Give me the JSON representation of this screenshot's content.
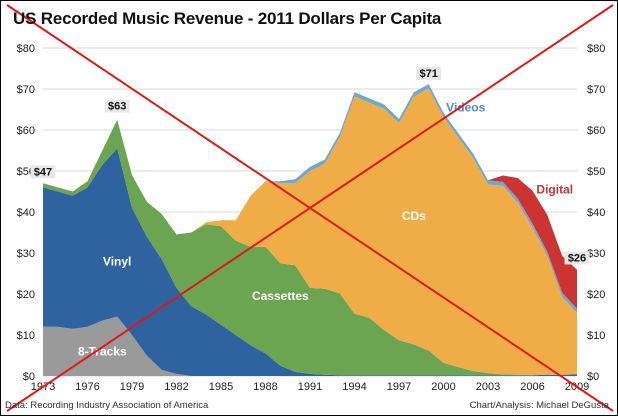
{
  "title": "US Recorded Music Revenue - 2011 Dollars Per Capita",
  "footer": {
    "source": "Data: Recording Industry Association of America",
    "credit": "Chart/Analysis: Michael DeGusta"
  },
  "chart_data": {
    "type": "area",
    "stacked": true,
    "title": "US Recorded Music Revenue - 2011 Dollars Per Capita",
    "xlabel": "",
    "ylabel": "",
    "xlim": [
      1973,
      2009
    ],
    "ylim": [
      0,
      80
    ],
    "y_ticks": [
      0,
      10,
      20,
      30,
      40,
      50,
      60,
      70,
      80
    ],
    "y_tick_labels": [
      "$0",
      "$10",
      "$20",
      "$30",
      "$40",
      "$50",
      "$60",
      "$70",
      "$80"
    ],
    "x_ticks": [
      1973,
      1976,
      1979,
      1982,
      1985,
      1988,
      1991,
      1994,
      1997,
      2000,
      2003,
      2006,
      2009
    ],
    "grid": true,
    "x": [
      1973,
      1974,
      1975,
      1976,
      1977,
      1978,
      1979,
      1980,
      1981,
      1982,
      1983,
      1984,
      1985,
      1986,
      1987,
      1988,
      1989,
      1990,
      1991,
      1992,
      1993,
      1994,
      1995,
      1996,
      1997,
      1998,
      1999,
      2000,
      2001,
      2002,
      2003,
      2004,
      2005,
      2006,
      2007,
      2008,
      2009
    ],
    "series": [
      {
        "name": "8-Tracks",
        "color": "#9a9a9a",
        "values": [
          12,
          12,
          11.5,
          12,
          13.5,
          14.5,
          10,
          5,
          1.5,
          0.5,
          0,
          0,
          0,
          0,
          0,
          0,
          0,
          0,
          0,
          0,
          0,
          0,
          0,
          0,
          0,
          0,
          0,
          0,
          0,
          0,
          0,
          0,
          0,
          0,
          0,
          0,
          0
        ]
      },
      {
        "name": "Vinyl",
        "color": "#2e63a0",
        "values": [
          34,
          33,
          32.5,
          34,
          38,
          41,
          31,
          29,
          27,
          21,
          17,
          15,
          12.5,
          10,
          7.5,
          5.5,
          2.5,
          1,
          0.5,
          0.3,
          0.2,
          0.2,
          0.2,
          0.2,
          0.2,
          0.2,
          0.2,
          0.2,
          0.2,
          0.2,
          0.2,
          0.2,
          0.2,
          0.2,
          0.3,
          0.3,
          0.4
        ]
      },
      {
        "name": "Cassettes",
        "color": "#6ba552",
        "values": [
          1,
          1,
          1,
          1.5,
          3.5,
          7,
          8,
          8.5,
          11,
          13,
          18,
          22,
          24,
          23,
          24,
          26,
          25,
          26,
          21,
          21,
          20,
          15,
          14,
          11,
          8.5,
          7.5,
          6,
          3,
          2,
          1,
          0.5,
          0.2,
          0.1,
          0,
          0,
          0,
          0
        ]
      },
      {
        "name": "CDs",
        "color": "#f0ad47",
        "values": [
          0,
          0,
          0,
          0,
          0,
          0,
          0,
          0,
          0,
          0,
          0,
          0.5,
          1.5,
          5,
          12.5,
          16,
          19.5,
          20,
          28.5,
          30.5,
          38,
          53,
          52.5,
          54,
          53,
          60.5,
          64,
          60,
          56,
          52,
          46,
          46,
          42,
          36,
          29,
          19,
          15
        ]
      },
      {
        "name": "Videos",
        "color": "#6fa6d4",
        "values": [
          0,
          0,
          0,
          0,
          0,
          0,
          0,
          0,
          0,
          0,
          0,
          0,
          0,
          0,
          0,
          0,
          0.5,
          1,
          1,
          1,
          1,
          1,
          1,
          1,
          1,
          1,
          1,
          1,
          1,
          1,
          1,
          1,
          1,
          1,
          1,
          1,
          1
        ]
      },
      {
        "name": "Digital",
        "color": "#cc3333",
        "values": [
          0,
          0,
          0,
          0,
          0,
          0,
          0,
          0,
          0,
          0,
          0,
          0,
          0,
          0,
          0,
          0,
          0,
          0,
          0,
          0,
          0,
          0,
          0,
          0,
          0,
          0,
          0,
          0,
          0,
          0,
          0,
          1.5,
          5,
          8,
          9,
          9,
          9.5
        ]
      }
    ],
    "annotations": [
      {
        "text": "$47",
        "x": 1973,
        "y": 47
      },
      {
        "text": "$63",
        "x": 1978,
        "y": 63
      },
      {
        "text": "$71",
        "x": 1999,
        "y": 71
      },
      {
        "text": "$26",
        "x": 2009,
        "y": 26
      }
    ],
    "series_labels": [
      {
        "text": "8-Tracks",
        "x": 1977,
        "y": 5,
        "color": "#ffffff"
      },
      {
        "text": "Vinyl",
        "x": 1978,
        "y": 27,
        "color": "#ffffff"
      },
      {
        "text": "Cassettes",
        "x": 1989,
        "y": 18.5,
        "color": "#ffffff"
      },
      {
        "text": "CDs",
        "x": 1998,
        "y": 38,
        "color": "#ffffff"
      },
      {
        "text": "Videos",
        "x": 2001.5,
        "y": 64.5,
        "color": "#4a8cc8"
      },
      {
        "text": "Digital",
        "x": 2007.5,
        "y": 44.5,
        "color": "#cc3333"
      }
    ],
    "overlay": "red X across the whole chart",
    "overlay_color": "#e01818"
  }
}
